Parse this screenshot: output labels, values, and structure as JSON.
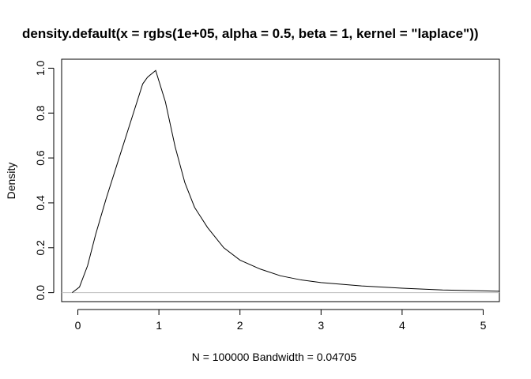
{
  "chart_data": {
    "type": "line",
    "title": "density.default(x = rgbs(1e+05, alpha = 0.5, beta = 1, kernel = \"laplace\"))",
    "xlabel": "N = 100000   Bandwidth = 0.04705",
    "ylabel": "Density",
    "xlim": [
      -0.2,
      5.2
    ],
    "ylim": [
      -0.04,
      1.04
    ],
    "x_ticks": [
      0,
      1,
      2,
      3,
      4,
      5
    ],
    "x_tick_labels": [
      "0",
      "1",
      "2",
      "3",
      "4",
      "5"
    ],
    "y_ticks": [
      0.0,
      0.2,
      0.4,
      0.6,
      0.8,
      1.0
    ],
    "y_tick_labels": [
      "0.0",
      "0.2",
      "0.4",
      "0.6",
      "0.8",
      "1.0"
    ],
    "baseline": 0,
    "grid": false,
    "series": [
      {
        "x": [
          -0.07,
          0.02,
          0.12,
          0.22,
          0.35,
          0.5,
          0.65,
          0.8,
          0.86,
          0.96,
          1.08,
          1.2,
          1.32,
          1.44,
          1.6,
          1.8,
          2.0,
          2.25,
          2.5,
          2.75,
          3.0,
          3.5,
          4.0,
          4.5,
          5.0,
          5.2
        ],
        "y": [
          0.0,
          0.025,
          0.12,
          0.26,
          0.42,
          0.59,
          0.76,
          0.93,
          0.96,
          0.99,
          0.85,
          0.65,
          0.49,
          0.38,
          0.29,
          0.2,
          0.145,
          0.105,
          0.075,
          0.057,
          0.045,
          0.03,
          0.02,
          0.012,
          0.008,
          0.006
        ]
      }
    ]
  }
}
